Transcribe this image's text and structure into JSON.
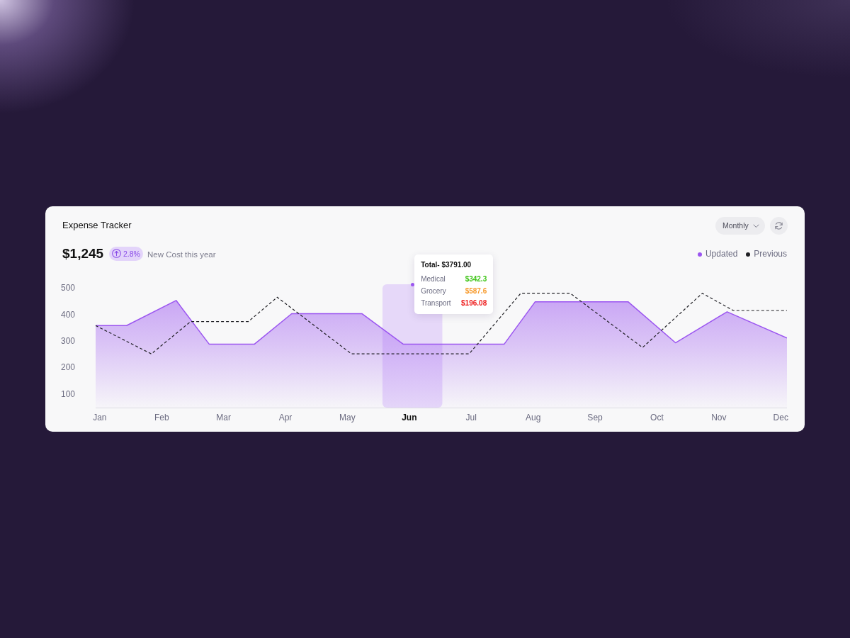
{
  "chart_data": {
    "type": "line",
    "title": "Expense Tracker",
    "annotations": [
      "$1,245",
      "2.8%",
      "New Cost this year",
      "Monthly",
      "Total- $3791.00",
      "Medical",
      "$342.3",
      "Grocery",
      "$587.6",
      "Transport",
      "$196.08"
    ],
    "series": [
      {
        "name": "Updated",
        "type": "area",
        "color": "#9b55f0",
        "x": [
          "--01-13",
          "--01-28",
          "--02-21",
          "--03-09",
          "--03-31",
          "--04-18",
          "--05-22",
          "--06-11",
          "--07-30",
          "--08-14",
          "--09-28",
          "--10-21",
          "--11-15",
          "--12-14"
        ],
        "values": [
          360,
          360,
          455,
          290,
          290,
          405,
          405,
          290,
          290,
          450,
          450,
          295,
          412,
          313
        ]
      },
      {
        "name": "Previous",
        "line_style": "dashed",
        "color": "#1f1f24",
        "x": [
          "--01-13",
          "--02-09",
          "--02-28",
          "--03-28",
          "--04-11",
          "--05-17",
          "--07-13",
          "--08-07",
          "--08-31",
          "--10-05",
          "--11-03",
          "--11-18",
          "--12-14"
        ],
        "values": [
          360,
          253,
          375,
          375,
          467,
          253,
          253,
          482,
          482,
          277,
          482,
          417,
          417
        ]
      }
    ],
    "xlim": [
      "--01-13",
      "--12-14"
    ],
    "xticks": [
      {
        "value": "--01-15",
        "label": "Jan"
      },
      {
        "value": "--02-14",
        "label": "Feb"
      },
      {
        "value": "--03-16",
        "label": "Mar"
      },
      {
        "value": "--04-15",
        "label": "Apr"
      },
      {
        "value": "--05-15",
        "label": "May"
      },
      {
        "value": "--06-14",
        "label": "Jun"
      },
      {
        "value": "--07-14",
        "label": "Jul"
      },
      {
        "value": "--08-13",
        "label": "Aug"
      },
      {
        "value": "--09-12",
        "label": "Sep"
      },
      {
        "value": "--10-12",
        "label": "Oct"
      },
      {
        "value": "--11-11",
        "label": "Nov"
      },
      {
        "value": "--12-11",
        "label": "Dec"
      }
    ],
    "ylim": [
      50,
      500
    ],
    "yticks": [
      100,
      200,
      300,
      400,
      500
    ],
    "bands": [
      {
        "axis": "x",
        "from": "--06-01",
        "to": "--06-30",
        "color": "#e6d8f9"
      }
    ],
    "legend": "top right",
    "marker": "none"
  }
}
